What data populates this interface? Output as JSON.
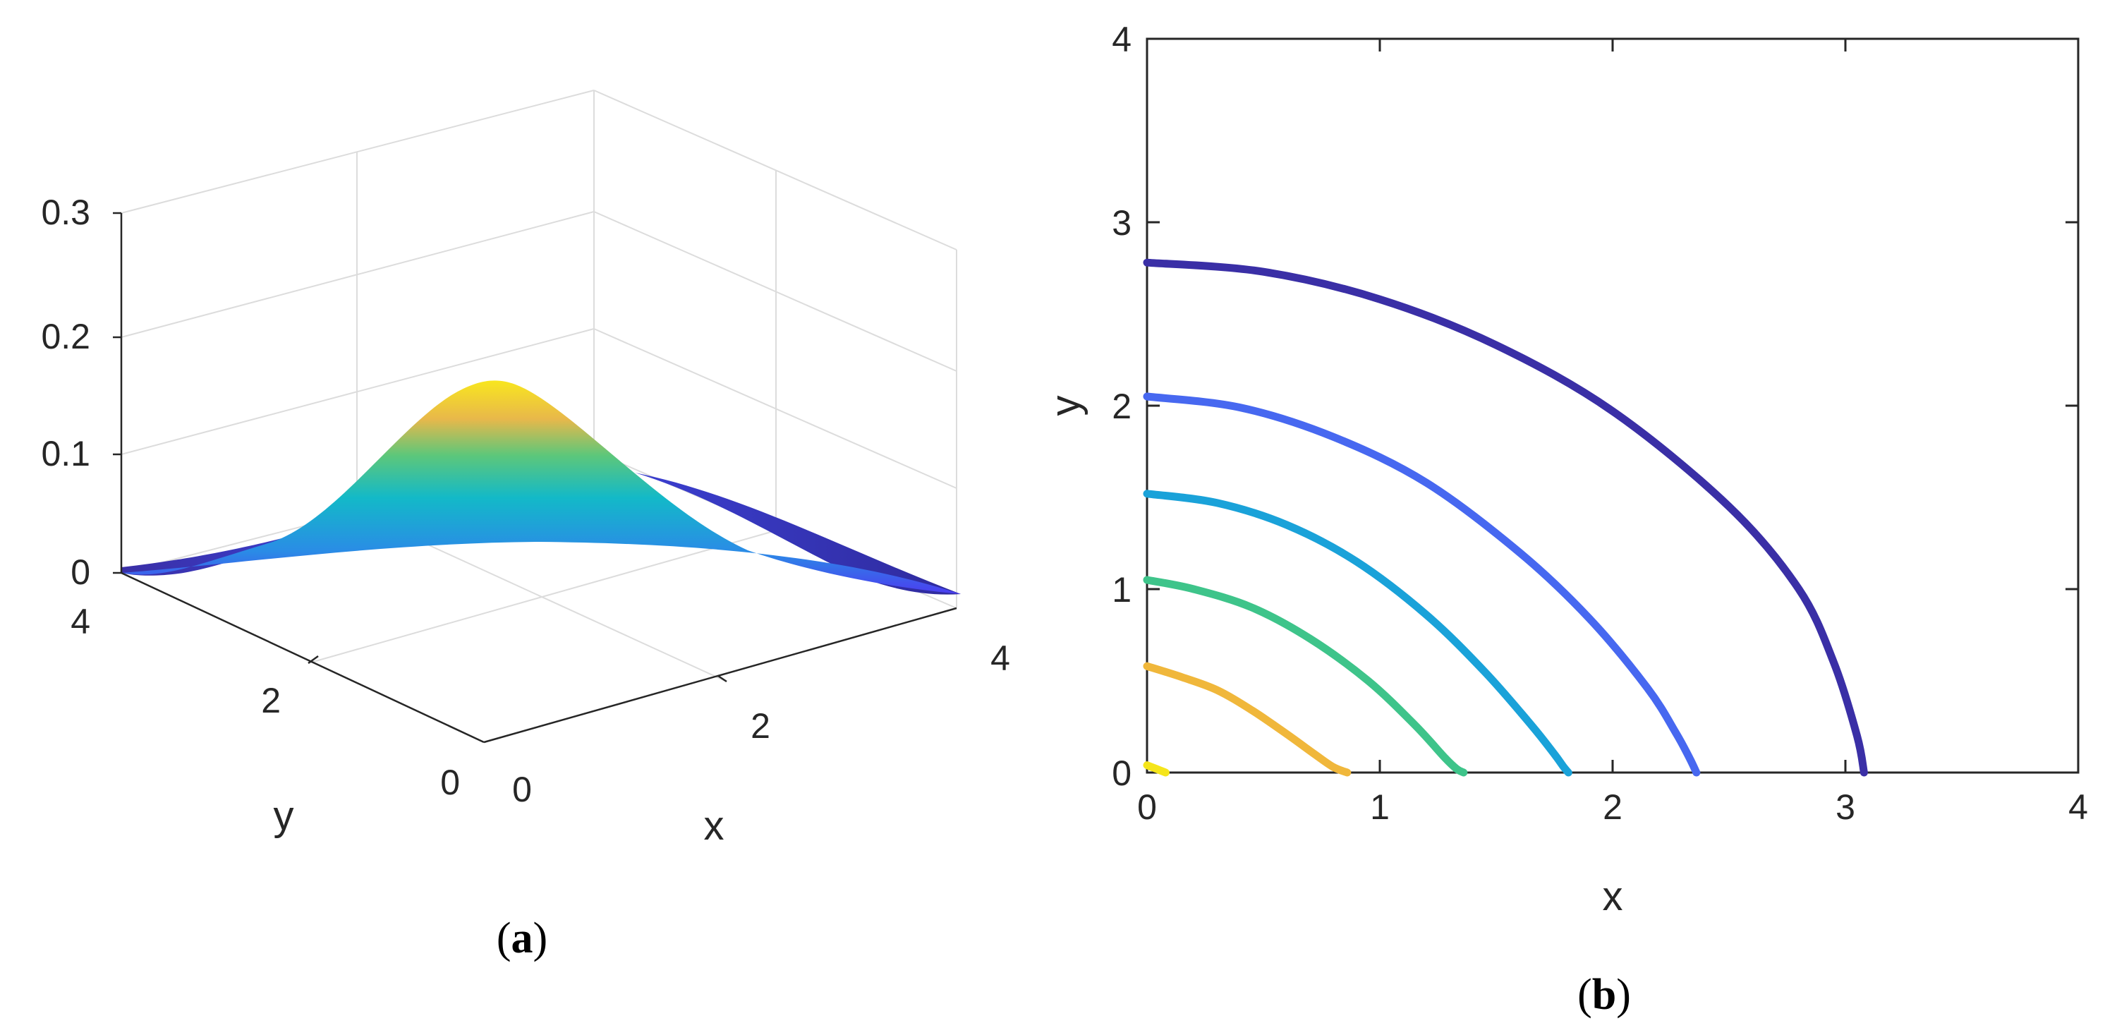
{
  "panels": {
    "a": {
      "label_open": "(",
      "label_letter": "a",
      "label_close": ")"
    },
    "b": {
      "label_open": "(",
      "label_letter": "b",
      "label_close": ")"
    }
  },
  "chart_data": [
    {
      "type": "surface",
      "panel": "a",
      "xlabel": "x",
      "ylabel": "y",
      "zlabel": "",
      "xlim": [
        0,
        4
      ],
      "ylim": [
        0,
        4
      ],
      "zlim": [
        0,
        0.3
      ],
      "x_ticks": [
        0,
        2,
        4
      ],
      "y_ticks": [
        0,
        2,
        4
      ],
      "z_ticks": [
        0,
        0.1,
        0.2,
        0.3
      ],
      "grid": true,
      "colormap": "parula",
      "peak": {
        "x": 0,
        "y": 0,
        "z": 0.16
      },
      "surface_values": {
        "x": [
          0,
          0.5,
          1,
          1.5,
          2,
          2.5,
          3,
          3.5,
          4
        ],
        "y": [
          0,
          0.5,
          1,
          1.5,
          2,
          2.5,
          3,
          3.5,
          4
        ],
        "z_formula_note": ""
      }
    },
    {
      "type": "contour",
      "panel": "b",
      "xlabel": "x",
      "ylabel": "y",
      "xlim": [
        0,
        4
      ],
      "ylim": [
        0,
        3
      ],
      "x_ticks": [
        0,
        1,
        2,
        3,
        4
      ],
      "y_ticks": [
        0,
        1,
        2,
        3,
        4
      ],
      "series": [
        {
          "color": "#3a2fa6",
          "x": [
            0,
            0.5,
            1.0,
            1.5,
            2.0,
            2.5,
            2.8,
            2.95,
            3.05,
            3.08
          ],
          "y": [
            2.78,
            2.73,
            2.58,
            2.33,
            1.97,
            1.45,
            1.0,
            0.6,
            0.2,
            0
          ]
        },
        {
          "color": "#4768f0",
          "x": [
            0,
            0.4,
            0.8,
            1.2,
            1.6,
            1.9,
            2.15,
            2.27,
            2.33,
            2.36
          ],
          "y": [
            2.05,
            1.99,
            1.83,
            1.58,
            1.2,
            0.84,
            0.46,
            0.22,
            0.08,
            0
          ]
        },
        {
          "color": "#1aa2d9",
          "x": [
            0,
            0.3,
            0.6,
            0.9,
            1.2,
            1.45,
            1.65,
            1.75,
            1.79,
            1.81
          ],
          "y": [
            1.52,
            1.47,
            1.35,
            1.15,
            0.86,
            0.55,
            0.26,
            0.1,
            0.03,
            0
          ]
        },
        {
          "color": "#3ec48a",
          "x": [
            0,
            0.2,
            0.45,
            0.7,
            0.95,
            1.15,
            1.28,
            1.33,
            1.36
          ],
          "y": [
            1.05,
            1.0,
            0.9,
            0.73,
            0.5,
            0.26,
            0.08,
            0.02,
            0
          ]
        },
        {
          "color": "#f0b73b",
          "x": [
            0,
            0.15,
            0.3,
            0.45,
            0.6,
            0.72,
            0.8,
            0.86
          ],
          "y": [
            0.58,
            0.52,
            0.45,
            0.34,
            0.21,
            0.1,
            0.03,
            0
          ]
        },
        {
          "color": "#f5e51b",
          "x": [
            0,
            0.04,
            0.08
          ],
          "y": [
            0.04,
            0.02,
            0
          ]
        }
      ]
    }
  ]
}
